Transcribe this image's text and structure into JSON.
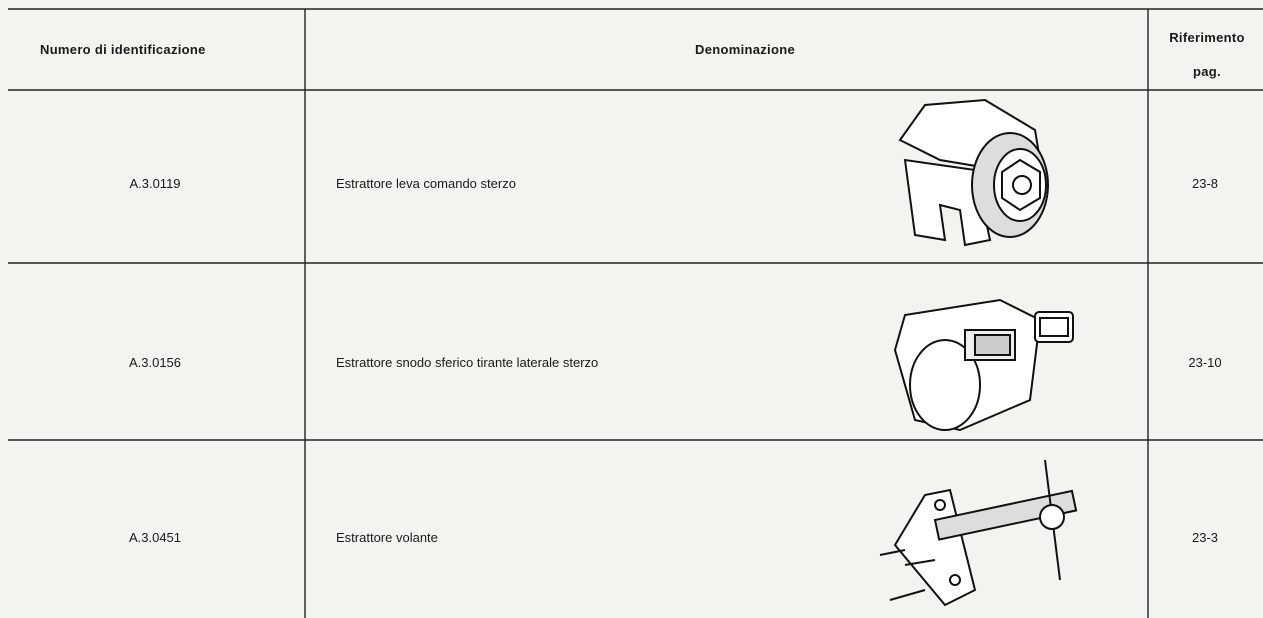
{
  "table": {
    "header": {
      "number": "Numero di identificazione",
      "name": "Denominazione",
      "reference": [
        "Riferimento",
        "pag."
      ]
    },
    "rows": [
      [
        "A.3.0119",
        "Estrattore leva comando sterzo",
        "23-8"
      ],
      [
        "A.3.0156",
        "Estrattore snodo sferico tirante laterale sterzo",
        "23-10"
      ],
      [
        "A.3.0451",
        "Estrattore volante",
        "23-3"
      ]
    ]
  }
}
